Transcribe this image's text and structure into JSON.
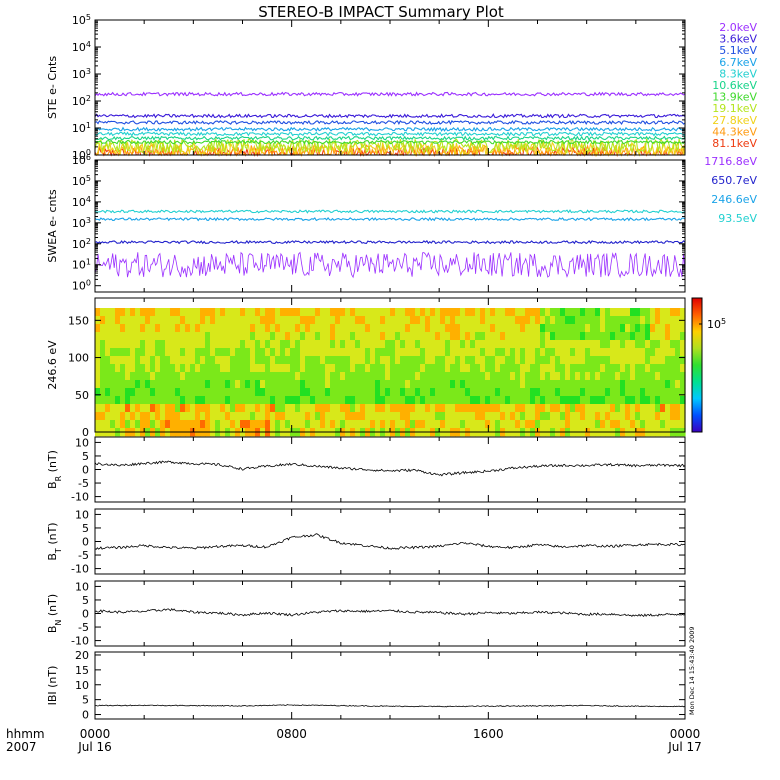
{
  "title": "STEREO-B IMPACT Summary Plot",
  "timestamp": "Mon Dec 14 15:43:40 2009",
  "time_axis": {
    "row1_label": "hhmm",
    "row2_label": "2007",
    "ticks": [
      {
        "hhmm": "0000",
        "date": "Jul 16"
      },
      {
        "hhmm": "0800",
        "date": ""
      },
      {
        "hhmm": "1600",
        "date": ""
      },
      {
        "hhmm": "0000",
        "date": "Jul 17"
      }
    ]
  },
  "chart_data": [
    {
      "id": "ste",
      "type": "line",
      "ylabel": "STE e- Cnts",
      "yscale": "log",
      "ylim": [
        1,
        100000
      ],
      "ytick_labels": [
        "10^0",
        "10^1",
        "10^2",
        "10^3",
        "10^4",
        "10^5"
      ],
      "series": [
        {
          "name": "2.0keV",
          "color": "#9b30ff",
          "level": 180
        },
        {
          "name": "3.6keV",
          "color": "#3a1bd9",
          "level": 28
        },
        {
          "name": "5.1keV",
          "color": "#1f4fe0",
          "level": 16
        },
        {
          "name": "6.7keV",
          "color": "#1aa3e8",
          "level": 9
        },
        {
          "name": "8.3keV",
          "color": "#22d0d0",
          "level": 6
        },
        {
          "name": "10.6keV",
          "color": "#18d48a",
          "level": 4.2
        },
        {
          "name": "13.9keV",
          "color": "#3fd92c",
          "level": 3.0
        },
        {
          "name": "19.1keV",
          "color": "#b4e51c",
          "level": 2.2
        },
        {
          "name": "27.8keV",
          "color": "#f0d21a",
          "level": 1.7
        },
        {
          "name": "44.3keV",
          "color": "#ff9a10",
          "level": 1.3
        },
        {
          "name": "81.1keV",
          "color": "#ee3b10",
          "level": 1.05
        }
      ]
    },
    {
      "id": "swea",
      "type": "line",
      "ylabel": "SWEA e- cnts",
      "yscale": "log",
      "ylim": [
        0.5,
        1000000
      ],
      "ytick_labels": [
        "10^0",
        "10^1",
        "10^2",
        "10^3",
        "10^4",
        "10^5",
        "10^6"
      ],
      "series": [
        {
          "name": "1716.8eV",
          "color": "#9b30ff",
          "level": 10
        },
        {
          "name": "650.7eV",
          "color": "#2222cc",
          "level": 120
        },
        {
          "name": "246.6eV",
          "color": "#1aa3e8",
          "level": 1500
        },
        {
          "name": "93.5eV",
          "color": "#22d0d0",
          "level": 3500
        }
      ]
    },
    {
      "id": "pad",
      "type": "heatmap",
      "ylabel": "246.6 eV",
      "ylim": [
        0,
        180
      ],
      "yticks": [
        0,
        50,
        100,
        150
      ],
      "colorbar_label": "10^5"
    },
    {
      "id": "br",
      "type": "line",
      "ylabel_main": "B",
      "ylabel_sub": "R",
      "ylabel_unit": " (nT)",
      "ylim": [
        -12,
        12
      ],
      "yticks": [
        -10,
        -5,
        0,
        5,
        10
      ],
      "series": [
        {
          "name": "",
          "color": "#000000",
          "x": [
            0,
            1,
            2,
            3,
            4,
            5,
            6,
            7,
            8,
            9,
            10,
            11,
            12,
            13,
            14,
            15,
            16,
            17,
            18,
            19,
            20,
            21,
            22,
            23,
            24
          ],
          "y": [
            2.2,
            1.5,
            2.3,
            2.8,
            2.2,
            1.8,
            0.2,
            1.2,
            2.0,
            1.2,
            0.5,
            0,
            -0.5,
            -0.2,
            -2.0,
            -1.2,
            -0.6,
            0.5,
            1.2,
            1.5,
            1.5,
            1.8,
            1.4,
            1.6,
            1.5
          ]
        }
      ]
    },
    {
      "id": "bt",
      "type": "line",
      "ylabel_main": "B",
      "ylabel_sub": "T",
      "ylabel_unit": " (nT)",
      "ylim": [
        -12,
        12
      ],
      "yticks": [
        -10,
        -5,
        0,
        5,
        10
      ],
      "series": [
        {
          "name": "",
          "color": "#000000",
          "x": [
            0,
            1,
            2,
            3,
            4,
            5,
            6,
            7,
            8,
            9,
            10,
            11,
            12,
            13,
            14,
            15,
            16,
            17,
            18,
            19,
            20,
            21,
            22,
            23,
            24
          ],
          "y": [
            -2.5,
            -2.2,
            -1.5,
            -2.2,
            -2.5,
            -1.8,
            -1.5,
            -2.0,
            1.5,
            2.5,
            -0.5,
            -1.5,
            -2.5,
            -2.2,
            -1.8,
            -0.5,
            -1.8,
            -2.3,
            -1.2,
            -2.0,
            -1.5,
            -1.8,
            -1.2,
            -1.0,
            -1.2
          ]
        }
      ]
    },
    {
      "id": "bn",
      "type": "line",
      "ylabel_main": "B",
      "ylabel_sub": "N",
      "ylabel_unit": " (nT)",
      "ylim": [
        -12,
        12
      ],
      "yticks": [
        -10,
        -5,
        0,
        5,
        10
      ],
      "series": [
        {
          "name": "",
          "color": "#000000",
          "x": [
            0,
            1,
            2,
            3,
            4,
            5,
            6,
            7,
            8,
            9,
            10,
            11,
            12,
            13,
            14,
            15,
            16,
            17,
            18,
            19,
            20,
            21,
            22,
            23,
            24
          ],
          "y": [
            1.0,
            0.5,
            0.8,
            1.5,
            0.5,
            0.2,
            -0.5,
            0.2,
            -0.5,
            0.5,
            1.0,
            0.8,
            1.0,
            0.5,
            0.3,
            -0.2,
            0.3,
            0.0,
            0.5,
            0.2,
            -0.3,
            -0.2,
            -0.8,
            -0.5,
            -0.2
          ]
        }
      ]
    },
    {
      "id": "bmag",
      "type": "line",
      "ylabel": "IBI (nT)",
      "ylim": [
        -1.5,
        21
      ],
      "yticks": [
        0,
        5,
        10,
        15,
        20
      ],
      "series": [
        {
          "name": "",
          "color": "#000000",
          "x": [
            0,
            2,
            4,
            6,
            8,
            10,
            12,
            14,
            16,
            18,
            20,
            22,
            24
          ],
          "y": [
            3.0,
            3.1,
            3.0,
            2.9,
            3.2,
            3.0,
            2.8,
            2.7,
            2.8,
            2.9,
            3.0,
            2.8,
            2.7
          ]
        }
      ]
    }
  ]
}
